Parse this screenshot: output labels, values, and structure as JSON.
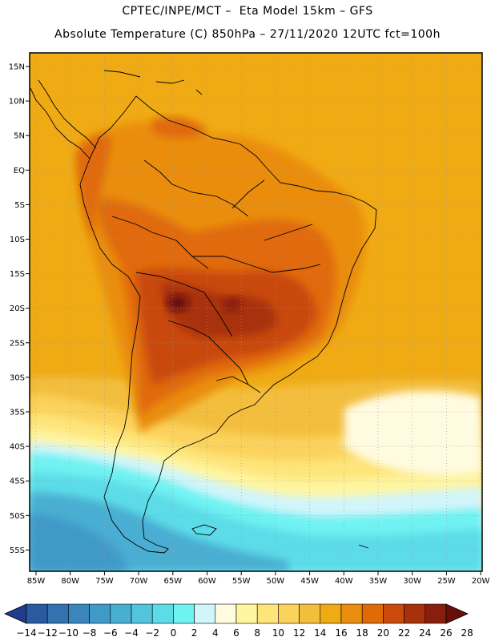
{
  "header": {
    "line1": "CPTEC/INPE/MCT –  Eta Model 15km – GFS",
    "line2": "Absolute Temperature (C) 850hPa – 27/11/2020 12UTC fct=100h"
  },
  "map": {
    "lat_labels": [
      "15N",
      "10N",
      "5N",
      "EQ",
      "5S",
      "10S",
      "15S",
      "20S",
      "25S",
      "30S",
      "35S",
      "40S",
      "45S",
      "50S",
      "55S"
    ],
    "lon_labels": [
      "85W",
      "80W",
      "75W",
      "70W",
      "65W",
      "60W",
      "55W",
      "50W",
      "45W",
      "40W",
      "35W",
      "30W",
      "25W",
      "20W"
    ],
    "grid": "dotted"
  },
  "colorbar": {
    "labels": [
      "-14",
      "-12",
      "-10",
      "-8",
      "-6",
      "-4",
      "-2",
      "0",
      "2",
      "4",
      "6",
      "8",
      "10",
      "12",
      "14",
      "16",
      "18",
      "20",
      "22",
      "24",
      "26",
      "28"
    ],
    "colors": [
      "#1f3d8c",
      "#2a5aa0",
      "#3272b0",
      "#3a86bc",
      "#409ac8",
      "#48aed2",
      "#52c4de",
      "#5cdce8",
      "#6ff2f2",
      "#d2f5fa",
      "#fffbe0",
      "#fff5a0",
      "#fde57a",
      "#fbd25c",
      "#f3be3c",
      "#f0aa14",
      "#ea8d10",
      "#e06a08",
      "#c94a0a",
      "#a8300a",
      "#8a1e0e",
      "#6a0e0a"
    ]
  }
}
